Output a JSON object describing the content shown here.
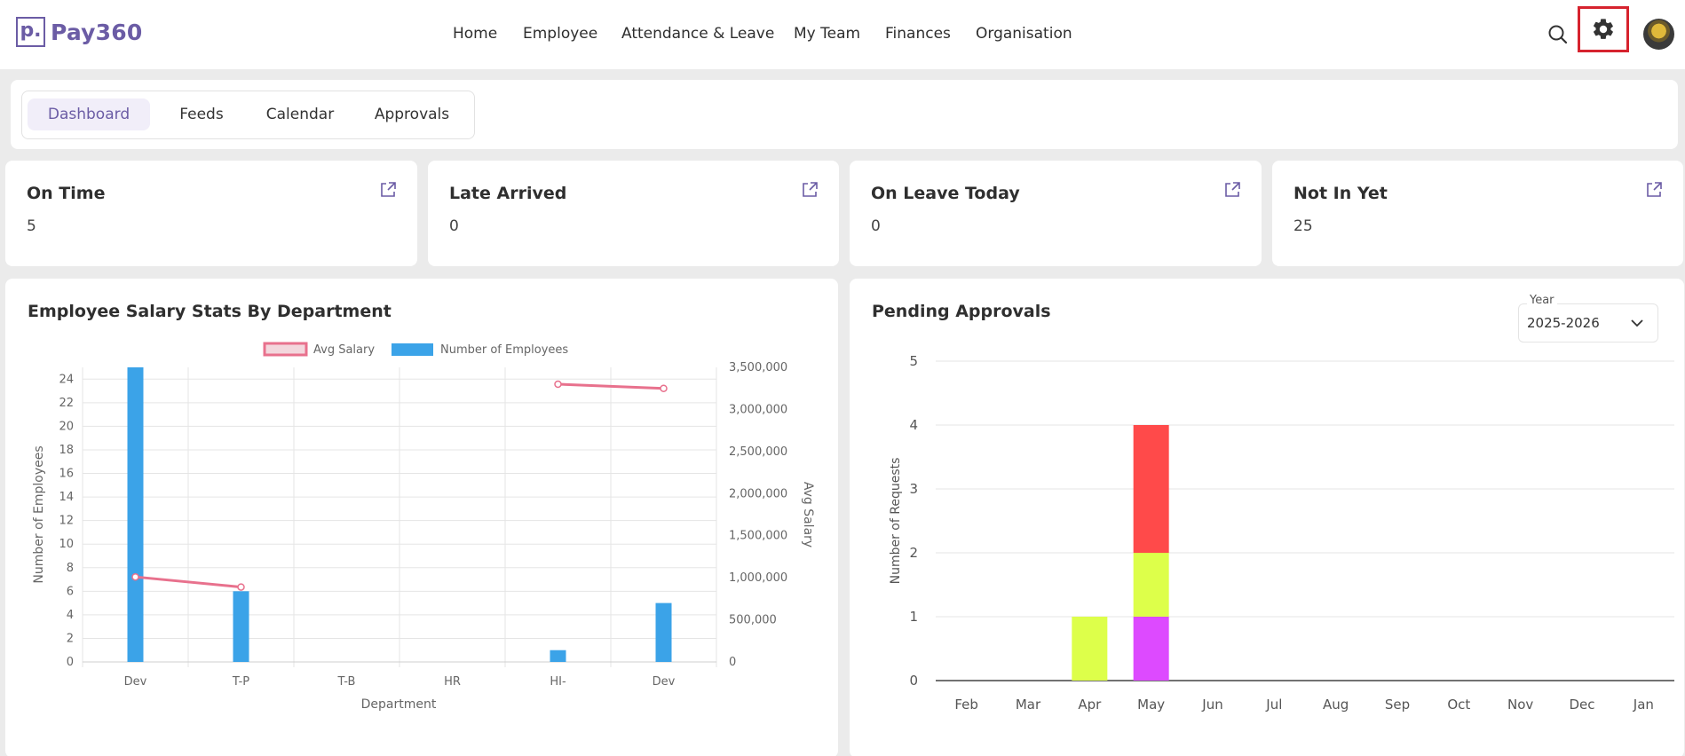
{
  "app": {
    "logo_mark": "p.",
    "name": "Pay360"
  },
  "nav": [
    "Home",
    "Employee",
    "Attendance & Leave",
    "My Team",
    "Finances",
    "Organisation"
  ],
  "icons": {
    "search": "search-icon",
    "settings": "gear-icon",
    "avatar": "avatar",
    "external": "external-link-icon",
    "dropdown": "chevron-down-icon"
  },
  "tabs": [
    "Dashboard",
    "Feeds",
    "Calendar",
    "Approvals"
  ],
  "active_tab": "Dashboard",
  "stats": [
    {
      "title": "On Time",
      "value": "5"
    },
    {
      "title": "Late Arrived",
      "value": "0"
    },
    {
      "title": "On Leave Today",
      "value": "0"
    },
    {
      "title": "Not In Yet",
      "value": "25"
    }
  ],
  "salary_panel": {
    "title": "Employee Salary Stats By Department"
  },
  "approvals_panel": {
    "title": "Pending Approvals",
    "year_label": "Year",
    "year_value": "2025-2026"
  },
  "colors": {
    "brand": "#6b5ca5",
    "highlight": "#d6232e",
    "bar_blue": "#3ba3e8",
    "line_pink": "#e8718d",
    "red": "#ff4a4a",
    "lime": "#ddff4a",
    "magenta": "#dd4aff"
  },
  "chart_data": [
    {
      "type": "bar",
      "categories": [
        "Dev",
        "T-P",
        "T-B",
        "HR",
        "HI-",
        "Dev"
      ],
      "series": [
        {
          "name": "Number of Employees",
          "kind": "bar",
          "axis": "left",
          "values": [
            25,
            6,
            0,
            0,
            1,
            5
          ]
        },
        {
          "name": "Avg Salary",
          "kind": "line",
          "axis": "right",
          "values": [
            1010000,
            890000,
            null,
            null,
            3300000,
            3250000
          ]
        }
      ],
      "xlabel": "Department",
      "ylabel": "Number of Employees",
      "y2label": "Avg Salary",
      "yticks": [
        0,
        2,
        4,
        6,
        8,
        10,
        12,
        14,
        16,
        18,
        20,
        22,
        24
      ],
      "ytick_labels": [
        "0",
        "2",
        "4",
        "6",
        "8",
        "10",
        "12",
        "14",
        "16",
        "18",
        "20",
        "22",
        "24"
      ],
      "y2ticks": [
        0,
        500000,
        1000000,
        1500000,
        2000000,
        2500000,
        3000000,
        3500000
      ],
      "y2tick_labels": [
        "0",
        "500,000",
        "1,000,000",
        "1,500,000",
        "2,000,000",
        "2,500,000",
        "3,000,000",
        "3,500,000"
      ],
      "ylim": [
        0,
        25
      ],
      "y2lim": [
        0,
        3500000
      ],
      "grid": true,
      "legend_position": "top"
    },
    {
      "type": "bar",
      "stacked": true,
      "categories": [
        "Feb",
        "Mar",
        "Apr",
        "May",
        "Jun",
        "Jul",
        "Aug",
        "Sep",
        "Oct",
        "Nov",
        "Dec",
        "Jan"
      ],
      "series": [
        {
          "color": "#dd4aff",
          "values": [
            0,
            0,
            0,
            1,
            0,
            0,
            0,
            0,
            0,
            0,
            0,
            0
          ]
        },
        {
          "color": "#ddff4a",
          "values": [
            0,
            0,
            1,
            1,
            0,
            0,
            0,
            0,
            0,
            0,
            0,
            0
          ]
        },
        {
          "color": "#ff4a4a",
          "values": [
            0,
            0,
            0,
            2,
            0,
            0,
            0,
            0,
            0,
            0,
            0,
            0
          ]
        }
      ],
      "ylabel": "Number of Requests",
      "yticks": [
        0,
        1,
        2,
        3,
        4,
        5
      ],
      "ylim": [
        0,
        5
      ],
      "grid": true
    }
  ]
}
